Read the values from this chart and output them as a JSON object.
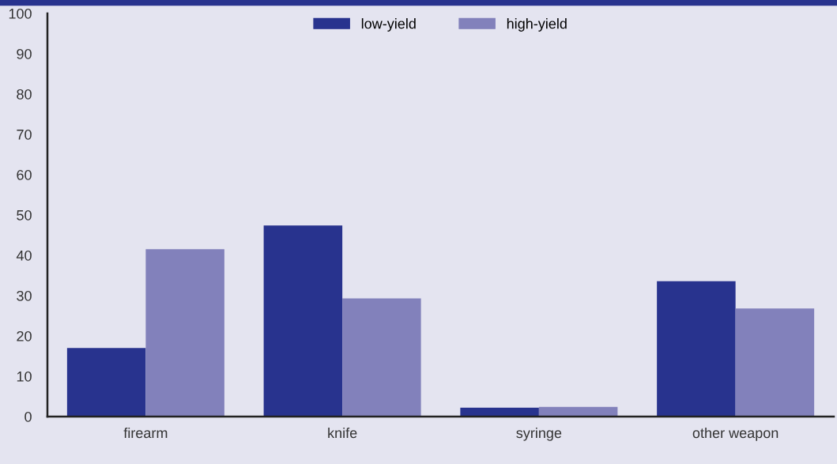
{
  "chart_data": {
    "type": "bar",
    "categories": [
      "firearm",
      "knife",
      "syringe",
      "other weapon"
    ],
    "series": [
      {
        "name": "low-yield",
        "color": "#28338e",
        "values": [
          17.0,
          47.4,
          2.2,
          33.6
        ]
      },
      {
        "name": "high-yield",
        "color": "#8281bb",
        "values": [
          41.5,
          29.3,
          2.4,
          26.8
        ]
      }
    ],
    "ylim": [
      0,
      100
    ],
    "yticks": [
      0,
      10,
      20,
      30,
      40,
      50,
      60,
      70,
      80,
      90,
      100
    ],
    "grid": false,
    "legend": "top"
  }
}
